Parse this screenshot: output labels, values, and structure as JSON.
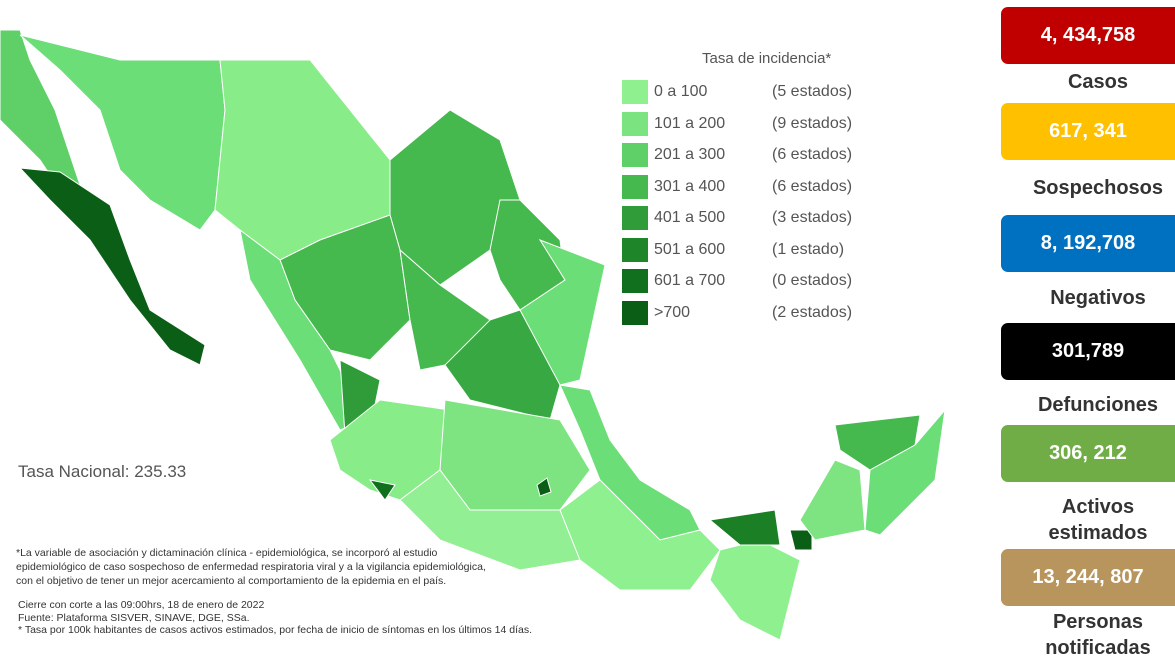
{
  "legend": {
    "title": "Tasa de incidencia*",
    "items": [
      {
        "range": "0 a 100",
        "count": "(5 estados)",
        "color": "#8ef08e"
      },
      {
        "range": "101 a 200",
        "count": "(9 estados)",
        "color": "#7be37f"
      },
      {
        "range": "201 a 300",
        "count": "(6 estados)",
        "color": "#5fd068"
      },
      {
        "range": "301 a 400",
        "count": "(6 estados)",
        "color": "#45b84e"
      },
      {
        "range": "401 a 500",
        "count": "(3 estados)",
        "color": "#2f9c39"
      },
      {
        "range": "501 a 600",
        "count": "(1 estado)",
        "color": "#1e8529"
      },
      {
        "range": "601 a 700",
        "count": "(0 estados)",
        "color": "#11701d"
      },
      {
        "range": ">700",
        "count": "(2 estados)",
        "color": "#0b5e16"
      }
    ]
  },
  "national_rate": "Tasa Nacional: 235.33",
  "notes": [
    "*La variable de asociación y dictaminación clínica - epidemiológica, se incorporó al estudio",
    "epidemiológico de caso sospechoso de enfermedad respiratoria viral y a la vigilancia epidemiológica,",
    "con el objetivo de tener un mejor acercamiento al comportamiento de la epidemia en el país."
  ],
  "footer": [
    "Cierre con corte a las 09:00hrs, 18 de enero de 2022",
    "Fuente: Plataforma SISVER, SINAVE, DGE, SSa.",
    "* Tasa por 100k habitantes de casos activos estimados, por fecha de inicio de síntomas en los últimos 14 días."
  ],
  "stats": [
    {
      "value": "4, 434,758",
      "label": "Casos",
      "color": "#c00000"
    },
    {
      "value": "617, 341",
      "label": "Sospechosos",
      "color": "#ffc000"
    },
    {
      "value": "8, 192,708",
      "label": "Negativos",
      "color": "#0070c0"
    },
    {
      "value": "301,789",
      "label": "Defunciones",
      "color": "#000000"
    },
    {
      "value": "306, 212",
      "label": "Activos estimados",
      "color": "#70ad47"
    },
    {
      "value": "13, 244, 807",
      "label": "Personas notificadas",
      "color": "#b8955c"
    }
  ]
}
